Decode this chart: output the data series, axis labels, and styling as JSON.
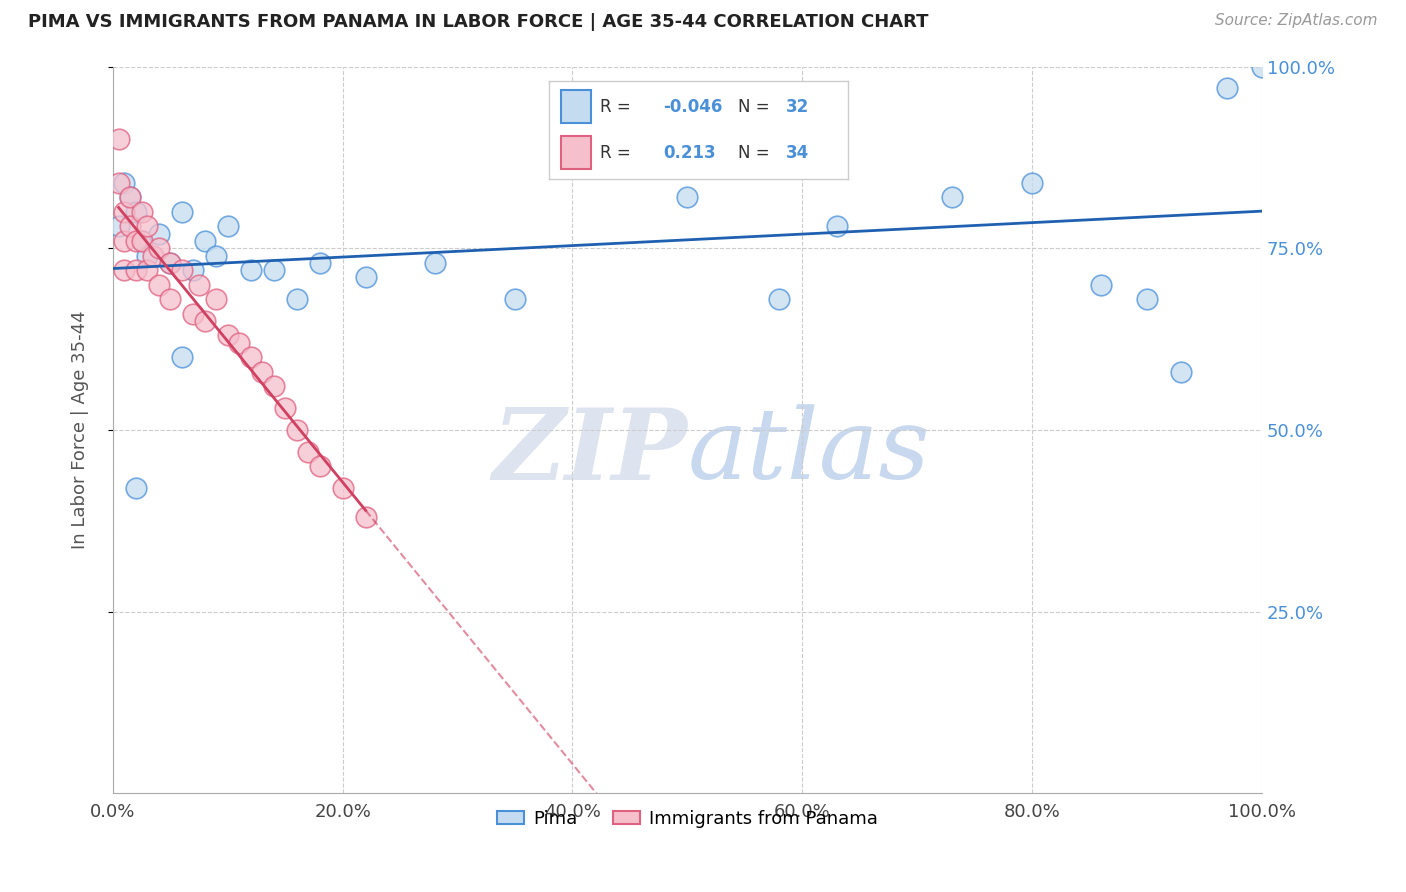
{
  "title": "PIMA VS IMMIGRANTS FROM PANAMA IN LABOR FORCE | AGE 35-44 CORRELATION CHART",
  "source_text": "Source: ZipAtlas.com",
  "ylabel": "In Labor Force | Age 35-44",
  "legend_label_1": "Pima",
  "legend_label_2": "Immigrants from Panama",
  "R1": -0.046,
  "N1": 32,
  "R2": 0.213,
  "N2": 34,
  "color_pima_fill": "#c5dcf0",
  "color_pima_edge": "#4a90d9",
  "color_panama_fill": "#f5c0cc",
  "color_panama_edge": "#e06080",
  "color_line_pima": "#2060b0",
  "color_line_panama": "#d04060",
  "watermark_color": "#dde4f0",
  "pima_x": [
    0.005,
    0.01,
    0.015,
    0.02,
    0.025,
    0.03,
    0.04,
    0.05,
    0.06,
    0.07,
    0.08,
    0.09,
    0.1,
    0.12,
    0.14,
    0.16,
    0.18,
    0.22,
    0.28,
    0.35,
    0.5,
    0.58,
    0.63,
    0.73,
    0.8,
    0.86,
    0.9,
    0.93,
    0.97,
    1.0,
    0.02,
    0.06
  ],
  "pima_y": [
    0.78,
    0.84,
    0.82,
    0.8,
    0.76,
    0.74,
    0.77,
    0.73,
    0.8,
    0.72,
    0.76,
    0.74,
    0.78,
    0.72,
    0.72,
    0.68,
    0.73,
    0.71,
    0.73,
    0.68,
    0.82,
    0.68,
    0.78,
    0.82,
    0.84,
    0.7,
    0.68,
    0.58,
    0.97,
    1.0,
    0.42,
    0.6
  ],
  "panama_x": [
    0.005,
    0.005,
    0.01,
    0.01,
    0.01,
    0.015,
    0.015,
    0.02,
    0.02,
    0.025,
    0.025,
    0.03,
    0.03,
    0.035,
    0.04,
    0.04,
    0.05,
    0.05,
    0.06,
    0.07,
    0.075,
    0.08,
    0.09,
    0.1,
    0.11,
    0.12,
    0.13,
    0.14,
    0.15,
    0.16,
    0.17,
    0.18,
    0.2,
    0.22
  ],
  "panama_y": [
    0.9,
    0.84,
    0.8,
    0.76,
    0.72,
    0.82,
    0.78,
    0.76,
    0.72,
    0.8,
    0.76,
    0.72,
    0.78,
    0.74,
    0.75,
    0.7,
    0.73,
    0.68,
    0.72,
    0.66,
    0.7,
    0.65,
    0.68,
    0.63,
    0.62,
    0.6,
    0.58,
    0.56,
    0.53,
    0.5,
    0.47,
    0.45,
    0.42,
    0.38
  ],
  "xlim": [
    0.0,
    1.0
  ],
  "ylim": [
    0.0,
    1.0
  ],
  "xtick_vals": [
    0.0,
    0.2,
    0.4,
    0.6,
    0.8,
    1.0
  ],
  "xtick_labels": [
    "0.0%",
    "20.0%",
    "40.0%",
    "60.0%",
    "80.0%",
    "100.0%"
  ],
  "ytick_vals": [
    0.25,
    0.5,
    0.75,
    1.0
  ],
  "ytick_labels": [
    "25.0%",
    "50.0%",
    "75.0%",
    "100.0%"
  ],
  "figsize": [
    14.06,
    8.92
  ],
  "dpi": 100
}
